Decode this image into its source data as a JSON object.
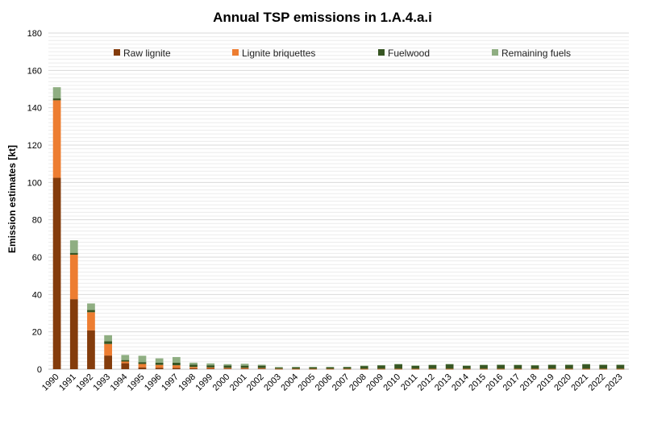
{
  "chart_data": {
    "type": "bar",
    "stacked": true,
    "title": "Annual TSP emissions in 1.A.4.a.i",
    "xlabel": "",
    "ylabel": "Emission estimates [kt]",
    "ylim": [
      0,
      180
    ],
    "yticks": [
      0,
      20,
      40,
      60,
      80,
      100,
      120,
      140,
      160,
      180
    ],
    "grid": true,
    "legend_position": "top",
    "categories": [
      "1990",
      "1991",
      "1992",
      "1993",
      "1994",
      "1995",
      "1996",
      "1997",
      "1998",
      "1999",
      "2000",
      "2001",
      "2002",
      "2003",
      "2004",
      "2005",
      "2006",
      "2007",
      "2008",
      "2009",
      "2010",
      "2011",
      "2012",
      "2013",
      "2014",
      "2015",
      "2016",
      "2017",
      "2018",
      "2019",
      "2020",
      "2021",
      "2022",
      "2023"
    ],
    "series": [
      {
        "name": "Raw lignite",
        "color": "#843c0c",
        "values": [
          102.5,
          37.5,
          20.8,
          7.3,
          3.2,
          1.0,
          0.8,
          0.7,
          0.5,
          0.4,
          0.3,
          0.3,
          0.3,
          0.1,
          0.1,
          0.1,
          0.1,
          0.1,
          0.1,
          0.1,
          0.1,
          0.1,
          0.1,
          0.1,
          0.1,
          0.1,
          0.1,
          0.1,
          0.1,
          0.1,
          0.1,
          0.1,
          0.1,
          0.1
        ]
      },
      {
        "name": "Lignite briquettes",
        "color": "#ed7d31",
        "values": [
          41.5,
          23.8,
          9.7,
          6.2,
          0.9,
          1.8,
          1.5,
          1.4,
          0.7,
          0.5,
          0.4,
          0.4,
          0.3,
          0.1,
          0.1,
          0.1,
          0.1,
          0.1,
          0.1,
          0.1,
          0.1,
          0.1,
          0.1,
          0.1,
          0.1,
          0.1,
          0.1,
          0.1,
          0.1,
          0.1,
          0.1,
          0.1,
          0.1,
          0.1
        ]
      },
      {
        "name": "Fuelwood",
        "color": "#375623",
        "values": [
          1.0,
          1.0,
          1.2,
          1.5,
          0.8,
          1.0,
          1.2,
          1.4,
          1.3,
          1.2,
          1.3,
          1.2,
          1.3,
          0.6,
          0.8,
          0.8,
          0.8,
          0.9,
          1.5,
          1.8,
          2.4,
          1.6,
          2.0,
          2.4,
          1.6,
          2.0,
          2.1,
          2.0,
          1.8,
          2.1,
          2.1,
          2.4,
          2.1,
          2.1
        ]
      },
      {
        "name": "Remaining fuels",
        "color": "#8fae82",
        "values": [
          6.0,
          6.7,
          3.5,
          3.2,
          2.7,
          3.4,
          2.3,
          3.0,
          1.0,
          1.0,
          0.7,
          1.0,
          0.5,
          0.4,
          0.3,
          0.3,
          0.3,
          0.2,
          0.2,
          0.2,
          0.2,
          0.2,
          0.2,
          0.2,
          0.2,
          0.2,
          0.2,
          0.2,
          0.2,
          0.2,
          0.2,
          0.2,
          0.2,
          0.2
        ]
      }
    ]
  }
}
